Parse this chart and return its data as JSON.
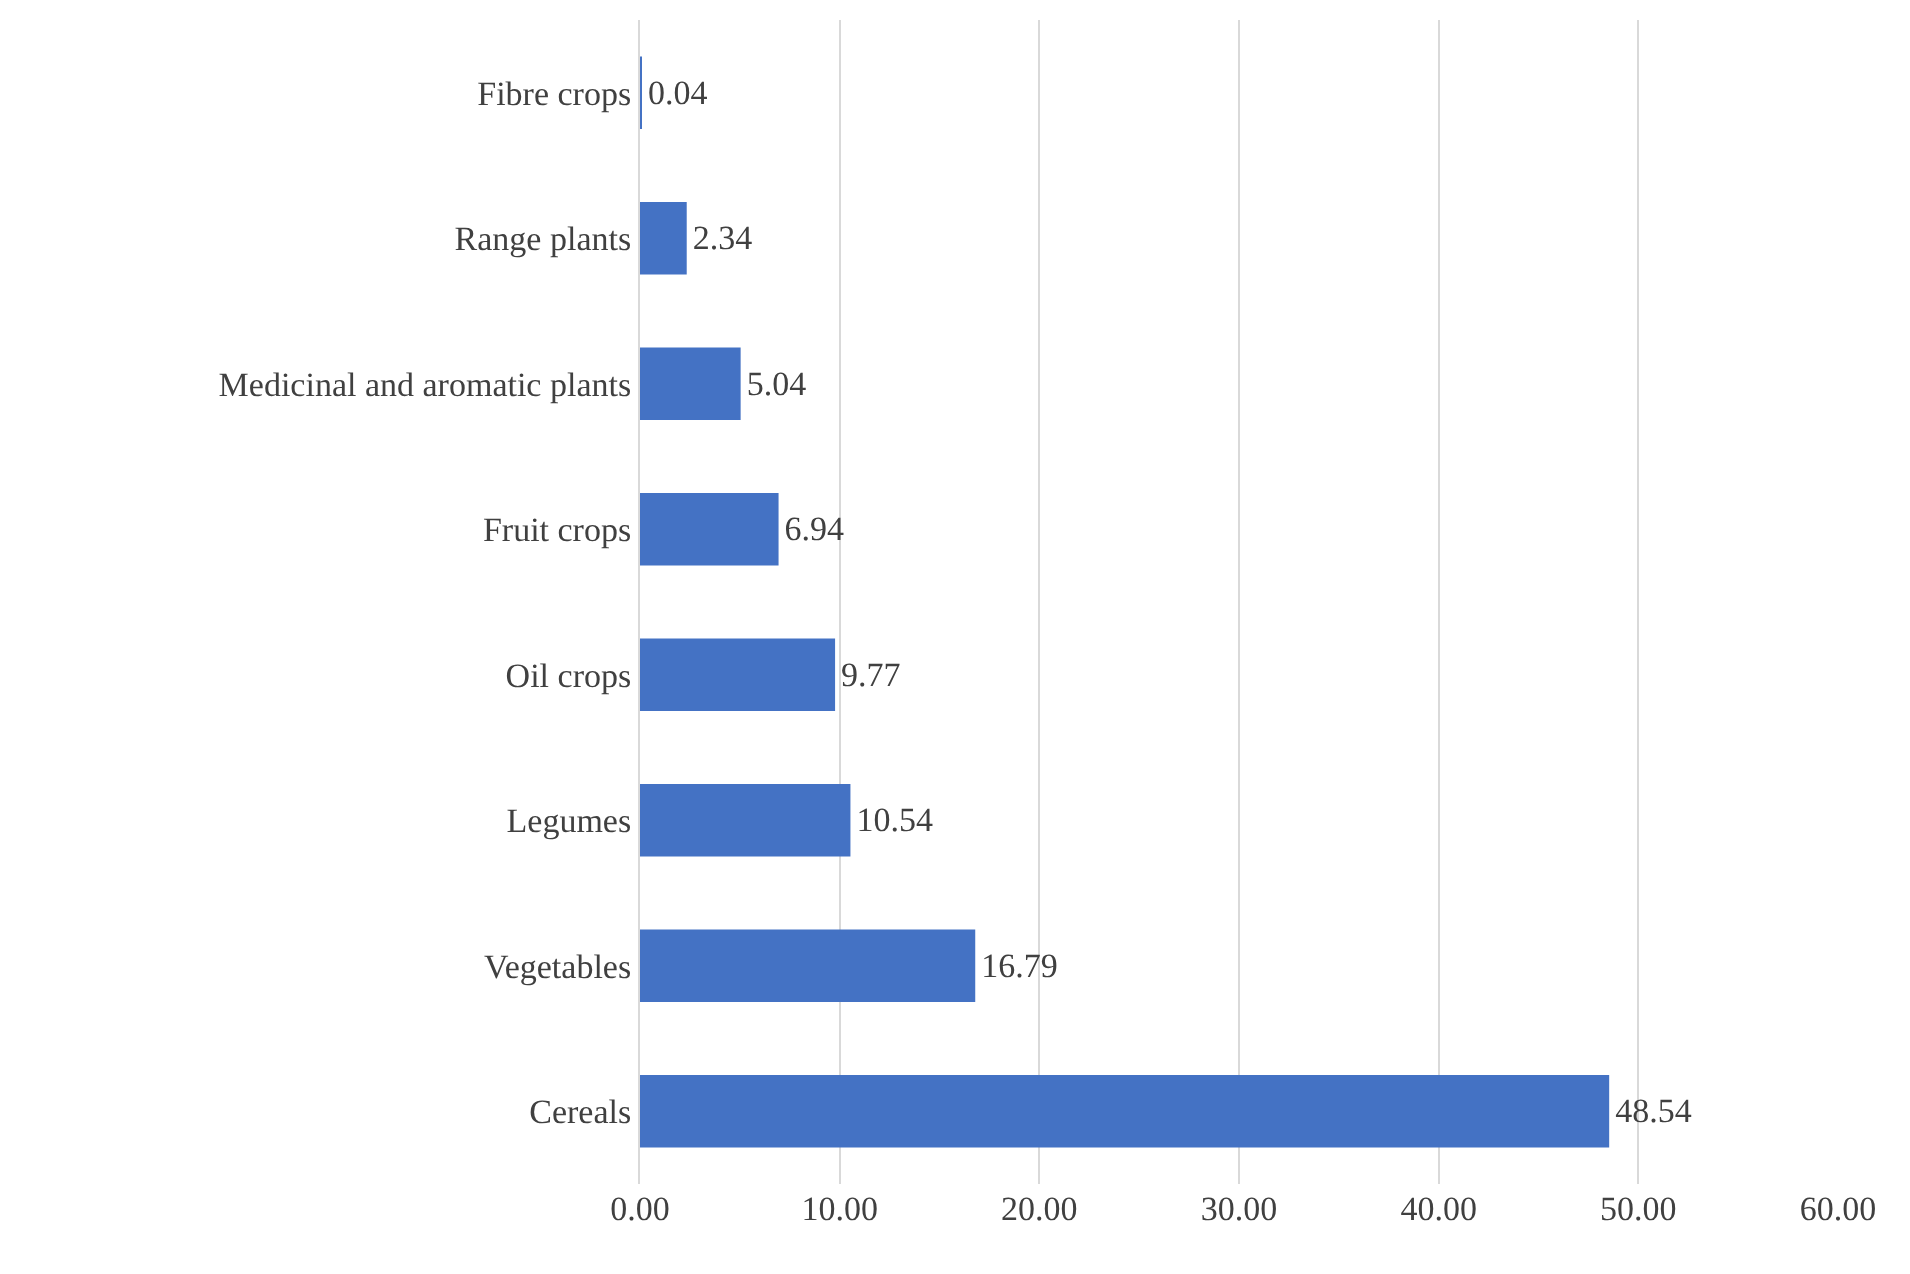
{
  "chart_data": {
    "type": "bar",
    "orientation": "horizontal",
    "categories": [
      "Fibre crops",
      "Range plants",
      "Medicinal and aromatic plants",
      "Fruit crops",
      "Oil crops",
      "Legumes",
      "Vegetables",
      "Cereals"
    ],
    "values": [
      0.04,
      2.34,
      5.04,
      6.94,
      9.77,
      10.54,
      16.79,
      48.54
    ],
    "color": "#4472c4",
    "xlim": [
      0,
      60
    ],
    "xticks": [
      {
        "value": 0,
        "label": "0.00"
      },
      {
        "value": 10,
        "label": "10.00"
      },
      {
        "value": 20,
        "label": "20.00"
      },
      {
        "value": 30,
        "label": "30.00"
      },
      {
        "value": 40,
        "label": "40.00"
      },
      {
        "value": 50,
        "label": "50.00"
      },
      {
        "value": 60,
        "label": "60.00"
      }
    ],
    "grid": "x",
    "data_labels": true
  }
}
